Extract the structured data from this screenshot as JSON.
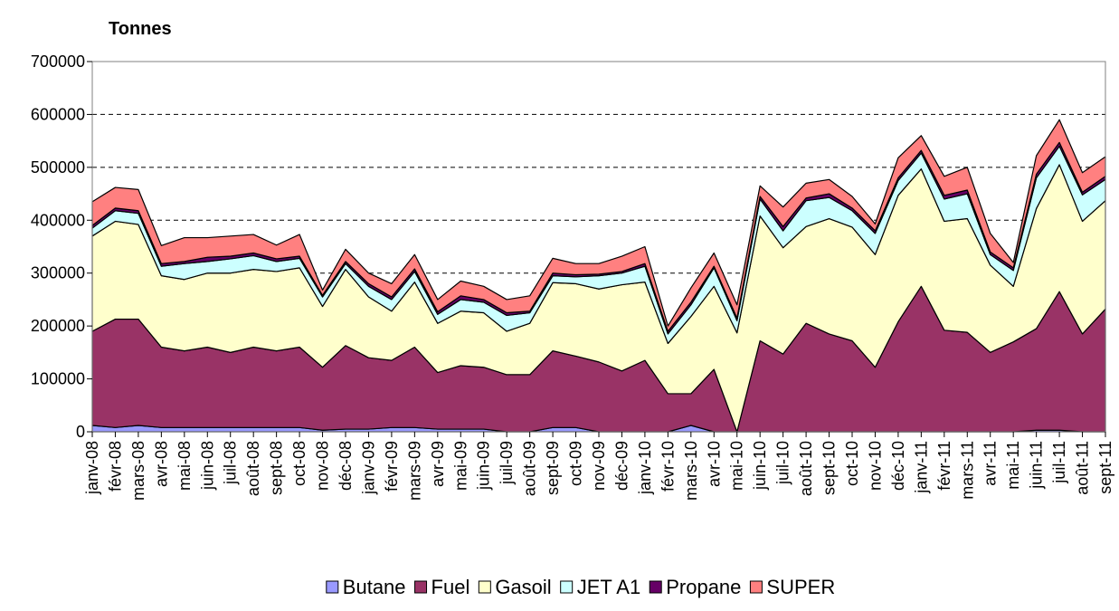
{
  "chart_data": {
    "type": "stacked_area",
    "y_axis_title": "Tonnes",
    "categories": [
      "janv-08",
      "févr-08",
      "mars-08",
      "avr-08",
      "mai-08",
      "juin-08",
      "juil-08",
      "août-08",
      "sept-08",
      "oct-08",
      "nov-08",
      "déc-08",
      "janv-09",
      "févr-09",
      "mars-09",
      "avr-09",
      "mai-09",
      "juin-09",
      "juil-09",
      "août-09",
      "sept-09",
      "oct-09",
      "nov-09",
      "déc-09",
      "janv-10",
      "févr-10",
      "mars-10",
      "avr-10",
      "mai-10",
      "juin-10",
      "juil-10",
      "août-10",
      "sept-10",
      "oct-10",
      "nov-10",
      "déc-10",
      "janv-11",
      "févr-11",
      "mars-11",
      "avr-11",
      "mai-11",
      "juin-11",
      "juil-11",
      "août-11",
      "sept-11"
    ],
    "series": [
      {
        "name": "Butane",
        "color": "#9999ff",
        "values": [
          12000,
          8000,
          12000,
          8000,
          8000,
          8000,
          8000,
          8000,
          8000,
          8000,
          3000,
          5000,
          5000,
          8000,
          8000,
          5000,
          5000,
          5000,
          0,
          0,
          8000,
          8000,
          0,
          0,
          0,
          0,
          12000,
          0,
          0,
          0,
          0,
          0,
          0,
          0,
          0,
          0,
          0,
          0,
          0,
          0,
          0,
          3000,
          3000,
          0,
          0
        ]
      },
      {
        "name": "Fuel",
        "color": "#993366",
        "values": [
          178000,
          205000,
          201000,
          152000,
          145000,
          152000,
          142000,
          152000,
          145000,
          152000,
          119000,
          158000,
          135000,
          127000,
          152000,
          107000,
          120000,
          117000,
          108000,
          108000,
          145000,
          135000,
          132000,
          115000,
          135000,
          72000,
          60000,
          118000,
          0,
          172000,
          147000,
          205000,
          185000,
          172000,
          122000,
          208000,
          275000,
          192000,
          188000,
          150000,
          170000,
          192000,
          262000,
          185000,
          232000
        ]
      },
      {
        "name": "Gasoil",
        "color": "#ffffcc",
        "values": [
          180000,
          185000,
          179000,
          135000,
          135000,
          140000,
          150000,
          147000,
          150000,
          150000,
          115000,
          144000,
          115000,
          93000,
          123000,
          93000,
          103000,
          103000,
          82000,
          97000,
          129000,
          137000,
          138000,
          163000,
          148000,
          95000,
          146000,
          157000,
          187000,
          236000,
          201000,
          183000,
          218000,
          215000,
          213000,
          239000,
          222000,
          206000,
          215000,
          165000,
          105000,
          227000,
          240000,
          213000,
          205000
        ]
      },
      {
        "name": "JET A1",
        "color": "#ccffff",
        "values": [
          15000,
          20000,
          21000,
          18000,
          30000,
          22000,
          27000,
          26000,
          19000,
          18000,
          18000,
          11000,
          20000,
          22000,
          20000,
          17000,
          22000,
          20000,
          30000,
          20000,
          13000,
          13000,
          25000,
          22000,
          30000,
          18000,
          22000,
          35000,
          23000,
          32000,
          32000,
          49000,
          40000,
          31000,
          40000,
          28000,
          30000,
          42000,
          47000,
          20000,
          30000,
          58000,
          35000,
          50000,
          40000
        ]
      },
      {
        "name": "Propane",
        "color": "#660066",
        "values": [
          5000,
          5000,
          5000,
          5000,
          4000,
          8000,
          5000,
          5000,
          5000,
          4000,
          3000,
          4000,
          5000,
          5000,
          5000,
          5000,
          7000,
          5000,
          5000,
          3000,
          5000,
          4000,
          3000,
          3000,
          5000,
          5000,
          5000,
          3000,
          5000,
          5000,
          8000,
          5000,
          7000,
          5000,
          5000,
          5000,
          5000,
          7000,
          7000,
          5000,
          5000,
          7000,
          7000,
          5000,
          6000
        ]
      },
      {
        "name": "SUPER",
        "color": "#ff8080",
        "values": [
          45000,
          39000,
          40000,
          34000,
          45000,
          37000,
          38000,
          35000,
          26000,
          41000,
          10000,
          23000,
          20000,
          25000,
          27000,
          23000,
          28000,
          25000,
          25000,
          29000,
          28000,
          21000,
          20000,
          29000,
          32000,
          10000,
          27000,
          25000,
          25000,
          20000,
          37000,
          28000,
          27000,
          22000,
          13000,
          38000,
          28000,
          36000,
          43000,
          35000,
          10000,
          35000,
          43000,
          37000,
          37000
        ]
      }
    ],
    "ylim": [
      0,
      700000
    ],
    "yticks": [
      0,
      100000,
      200000,
      300000,
      400000,
      500000,
      600000,
      700000
    ],
    "grid": true
  }
}
